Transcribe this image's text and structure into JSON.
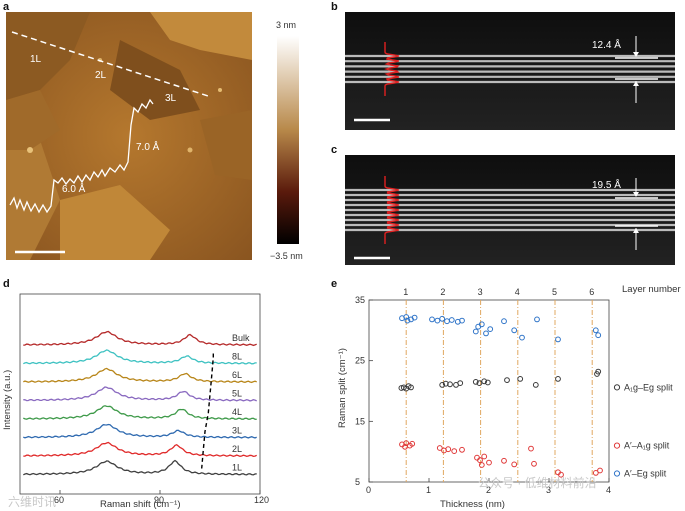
{
  "panels": {
    "a": "a",
    "b": "b",
    "c": "c",
    "d": "d",
    "e": "e"
  },
  "afm": {
    "layers": [
      "1L",
      "2L",
      "3L"
    ],
    "steps": [
      "6.0 Å",
      "7.0 Å"
    ],
    "colorbar": {
      "max": "3 nm",
      "min": "−3.5 nm"
    },
    "colors": {
      "stop_top": "#ffffff",
      "stop_mid": "#b8894a",
      "stop_low": "#5a1a0c",
      "stop_bottom": "#000000"
    }
  },
  "stem": {
    "b_thickness": "12.4 Å",
    "c_thickness": "19.5 Å",
    "profile_color": "#e02020"
  },
  "raman": {
    "xlabel": "Raman shift (cm⁻¹)",
    "ylabel": "Intensity (a.u.)",
    "xticks": [
      "60",
      "90",
      "120"
    ],
    "series": [
      {
        "name": "Bulk",
        "color": "#b52a2a",
        "split": 25.0,
        "ratio": 0.75
      },
      {
        "name": "8L",
        "color": "#3fc2c2",
        "split": 24.0,
        "ratio": 0.55
      },
      {
        "name": "6L",
        "color": "#b8861a",
        "split": 23.5,
        "ratio": 0.62
      },
      {
        "name": "5L",
        "color": "#8a6ac0",
        "split": 23.0,
        "ratio": 0.68
      },
      {
        "name": "4L",
        "color": "#3f9a4a",
        "split": 22.5,
        "ratio": 0.74
      },
      {
        "name": "3L",
        "color": "#2f6ab0",
        "split": 21.5,
        "ratio": 0.5
      },
      {
        "name": "2L",
        "color": "#e02a2a",
        "split": 21.0,
        "ratio": 0.8
      },
      {
        "name": "1L",
        "color": "#404040",
        "split": 20.5,
        "ratio": 1.0
      }
    ]
  },
  "chart_data": {
    "type": "scatter",
    "xlabel": "Thickness (nm)",
    "ylabel": "Raman split (cm⁻¹)",
    "xlim": [
      0,
      4
    ],
    "ylim": [
      5,
      35
    ],
    "xticks": [
      "0",
      "1",
      "2",
      "3",
      "4"
    ],
    "yticks": [
      "5",
      "15",
      "25",
      "35"
    ],
    "top_axis_label": "Layer number",
    "layer_positions": [
      0.62,
      1.24,
      1.86,
      2.48,
      3.1,
      3.72
    ],
    "layer_labels": [
      "1",
      "2",
      "3",
      "4",
      "5",
      "6"
    ],
    "series": [
      {
        "name": "A₁g–Eg split",
        "color": "#3a3a3a",
        "points": [
          [
            0.58,
            20.6
          ],
          [
            0.62,
            20.4
          ],
          [
            0.66,
            20.8
          ],
          [
            0.54,
            20.5
          ],
          [
            0.7,
            20.6
          ],
          [
            1.22,
            21.0
          ],
          [
            1.28,
            21.2
          ],
          [
            1.35,
            21.1
          ],
          [
            1.45,
            21.0
          ],
          [
            1.52,
            21.3
          ],
          [
            1.78,
            21.5
          ],
          [
            1.84,
            21.3
          ],
          [
            1.92,
            21.6
          ],
          [
            1.98,
            21.4
          ],
          [
            2.3,
            21.8
          ],
          [
            2.52,
            22.0
          ],
          [
            2.78,
            21.0
          ],
          [
            3.15,
            22.0
          ],
          [
            3.8,
            22.8
          ],
          [
            3.82,
            23.2
          ]
        ]
      },
      {
        "name": "A′–A₁g split",
        "color": "#e03a3a",
        "points": [
          [
            0.55,
            11.2
          ],
          [
            0.62,
            11.4
          ],
          [
            0.68,
            11.0
          ],
          [
            0.72,
            11.3
          ],
          [
            0.6,
            10.8
          ],
          [
            1.18,
            10.6
          ],
          [
            1.25,
            10.2
          ],
          [
            1.32,
            10.4
          ],
          [
            1.42,
            10.1
          ],
          [
            1.55,
            10.3
          ],
          [
            1.8,
            9.0
          ],
          [
            1.85,
            8.6
          ],
          [
            1.92,
            9.2
          ],
          [
            2.0,
            8.2
          ],
          [
            1.88,
            7.8
          ],
          [
            2.25,
            8.5
          ],
          [
            2.42,
            7.9
          ],
          [
            2.7,
            10.5
          ],
          [
            2.75,
            8.0
          ],
          [
            3.15,
            6.6
          ],
          [
            3.2,
            6.2
          ],
          [
            3.78,
            6.5
          ],
          [
            3.85,
            6.9
          ]
        ]
      },
      {
        "name": "A′–Eg split",
        "color": "#2f74c8",
        "points": [
          [
            0.55,
            32.0
          ],
          [
            0.62,
            32.2
          ],
          [
            0.7,
            31.8
          ],
          [
            0.76,
            32.1
          ],
          [
            0.64,
            31.6
          ],
          [
            1.05,
            31.8
          ],
          [
            1.14,
            31.6
          ],
          [
            1.22,
            31.9
          ],
          [
            1.3,
            31.5
          ],
          [
            1.38,
            31.7
          ],
          [
            1.48,
            31.4
          ],
          [
            1.55,
            31.6
          ],
          [
            1.82,
            30.6
          ],
          [
            1.88,
            31.0
          ],
          [
            1.95,
            29.5
          ],
          [
            2.02,
            30.2
          ],
          [
            1.78,
            29.8
          ],
          [
            2.25,
            31.5
          ],
          [
            2.42,
            30.0
          ],
          [
            2.55,
            28.8
          ],
          [
            2.8,
            31.8
          ],
          [
            3.15,
            28.5
          ],
          [
            3.78,
            30.0
          ],
          [
            3.82,
            29.2
          ]
        ]
      }
    ]
  },
  "watermarks": {
    "left": "六维时讯",
    "right": "公众号 · 低维材料前沿"
  }
}
